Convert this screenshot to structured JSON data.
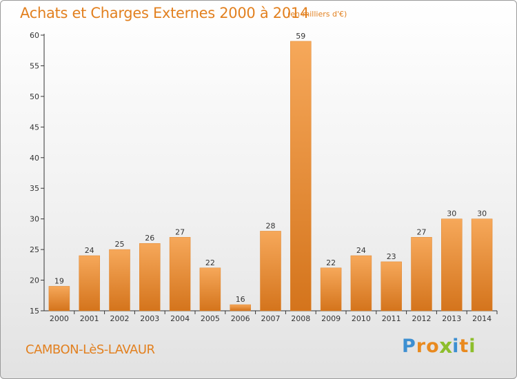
{
  "title": "Achats et Charges Externes 2000 à 2014",
  "subtitle": "(en milliers d'€)",
  "commune": "CAMBON-LèS-LAVAUR",
  "logo": {
    "letters": [
      "P",
      "r",
      "o",
      "x",
      "i",
      "t",
      "i"
    ],
    "colors": [
      "#3d8fd1",
      "#e98a1f",
      "#e98a1f",
      "#8dbe2c",
      "#3d8fd1",
      "#e98a1f",
      "#8dbe2c"
    ]
  },
  "chart_data": {
    "type": "bar",
    "categories": [
      "2000",
      "2001",
      "2002",
      "2003",
      "2004",
      "2005",
      "2006",
      "2007",
      "2008",
      "2009",
      "2010",
      "2011",
      "2012",
      "2013",
      "2014"
    ],
    "values": [
      19,
      24,
      25,
      26,
      27,
      22,
      16,
      28,
      59,
      22,
      24,
      23,
      27,
      30,
      30
    ],
    "ylim": [
      15,
      60
    ],
    "yticks": [
      15,
      20,
      25,
      30,
      35,
      40,
      45,
      50,
      55,
      60
    ],
    "grid": false,
    "bar_color_light": "#f6a85a",
    "bar_color_dark": "#d4741c",
    "label_color": "#333333"
  }
}
